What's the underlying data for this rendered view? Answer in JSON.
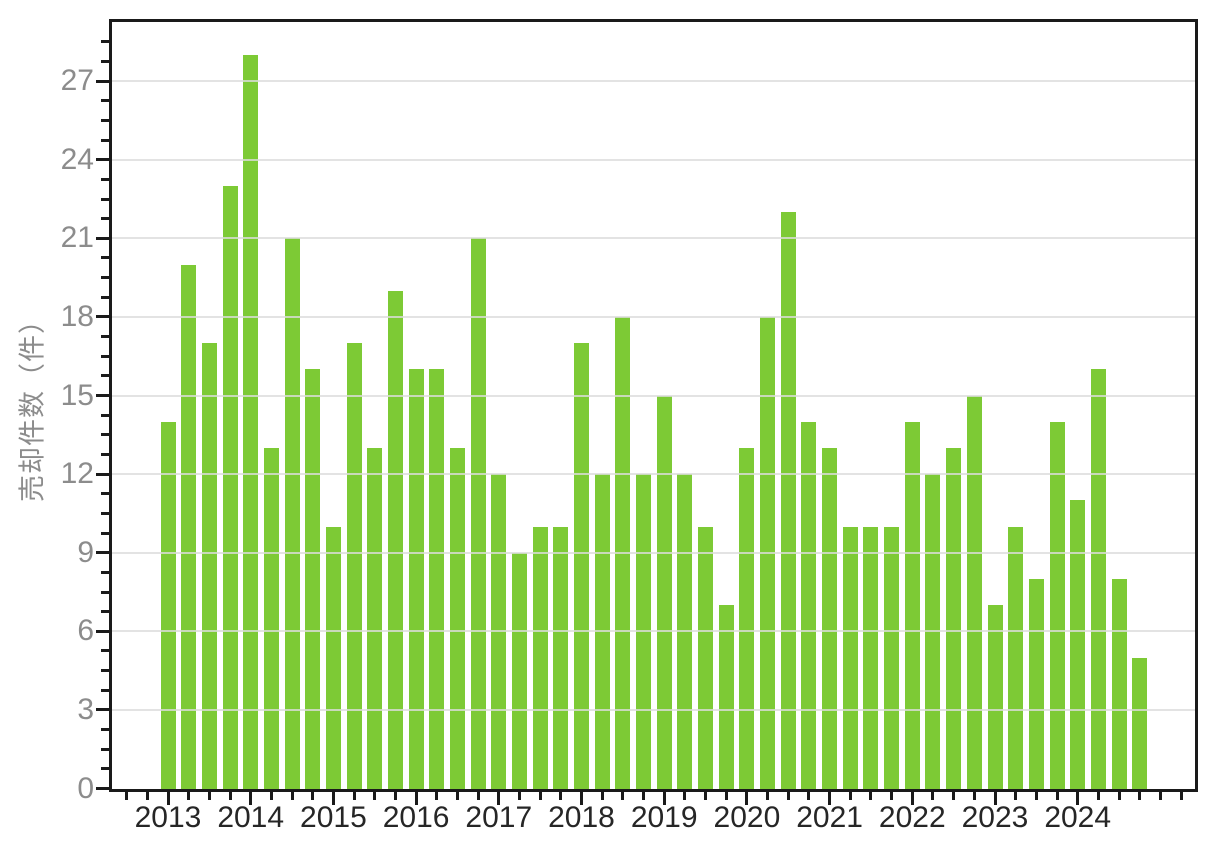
{
  "chart_data": {
    "type": "bar",
    "ylabel": "売却件数（件）",
    "xlabel": "",
    "categories": [
      "2013Q1",
      "2013Q2",
      "2013Q3",
      "2013Q4",
      "2014Q1",
      "2014Q2",
      "2014Q3",
      "2014Q4",
      "2015Q1",
      "2015Q2",
      "2015Q3",
      "2015Q4",
      "2016Q1",
      "2016Q2",
      "2016Q3",
      "2016Q4",
      "2017Q1",
      "2017Q2",
      "2017Q3",
      "2017Q4",
      "2018Q1",
      "2018Q2",
      "2018Q3",
      "2018Q4",
      "2019Q1",
      "2019Q2",
      "2019Q3",
      "2019Q4",
      "2020Q1",
      "2020Q2",
      "2020Q3",
      "2020Q4",
      "2021Q1",
      "2021Q2",
      "2021Q3",
      "2021Q4",
      "2022Q1",
      "2022Q2",
      "2022Q3",
      "2022Q4",
      "2023Q1",
      "2023Q2",
      "2023Q3",
      "2023Q4",
      "2024Q1",
      "2024Q2",
      "2024Q3",
      "2024Q4"
    ],
    "values": [
      14,
      20,
      17,
      23,
      28,
      13,
      21,
      16,
      10,
      17,
      13,
      19,
      16,
      16,
      13,
      21,
      12,
      9,
      10,
      10,
      17,
      12,
      18,
      12,
      15,
      12,
      10,
      7,
      13,
      18,
      22,
      14,
      13,
      10,
      10,
      10,
      14,
      12,
      13,
      15,
      7,
      10,
      8,
      14,
      11,
      16,
      8,
      5
    ],
    "x_tick_labels": [
      "2013",
      "2014",
      "2015",
      "2016",
      "2017",
      "2018",
      "2019",
      "2020",
      "2021",
      "2022",
      "2023",
      "2024"
    ],
    "y_ticks": [
      0,
      3,
      6,
      9,
      12,
      15,
      18,
      21,
      24,
      27
    ],
    "ylim": [
      0,
      29.3
    ],
    "grid": "on",
    "legend": "none",
    "colors": {
      "bar": "#7dca35",
      "grid": "#dcdcdc",
      "spine": "#1a1a1a",
      "y_tick_label": "#8c8c8c",
      "x_tick_label": "#262626",
      "y_axis_title": "#8c8c8c",
      "background": "#ffffff"
    }
  }
}
